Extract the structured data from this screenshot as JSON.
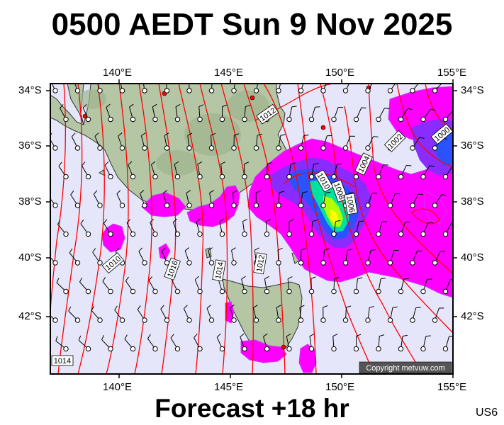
{
  "title": "0500 AEDT Sun 9 Nov 2025",
  "footer": "Forecast +18 hr",
  "region_code": "US6",
  "copyright": "Copyright metvuw.com",
  "lon_labels": [
    "140°E",
    "145°E",
    "150°E",
    "155°E"
  ],
  "lat_labels": [
    "34°S",
    "36°S",
    "38°S",
    "40°S",
    "42°S"
  ],
  "isobar_labels": [
    "1012",
    "1010",
    "1016",
    "1014",
    "1012",
    "1010",
    "1008",
    "1006",
    "1004",
    "1002",
    "1000",
    "1014"
  ],
  "colors": {
    "sea": "#e6e6fa",
    "land": "#b4c6a4",
    "isobar": "#ff0000",
    "rain_light": "#ff00ff",
    "rain_mid": "#5a3cff",
    "rain_heavy": "#00ff5a",
    "rain_peak": "#ffff00"
  }
}
